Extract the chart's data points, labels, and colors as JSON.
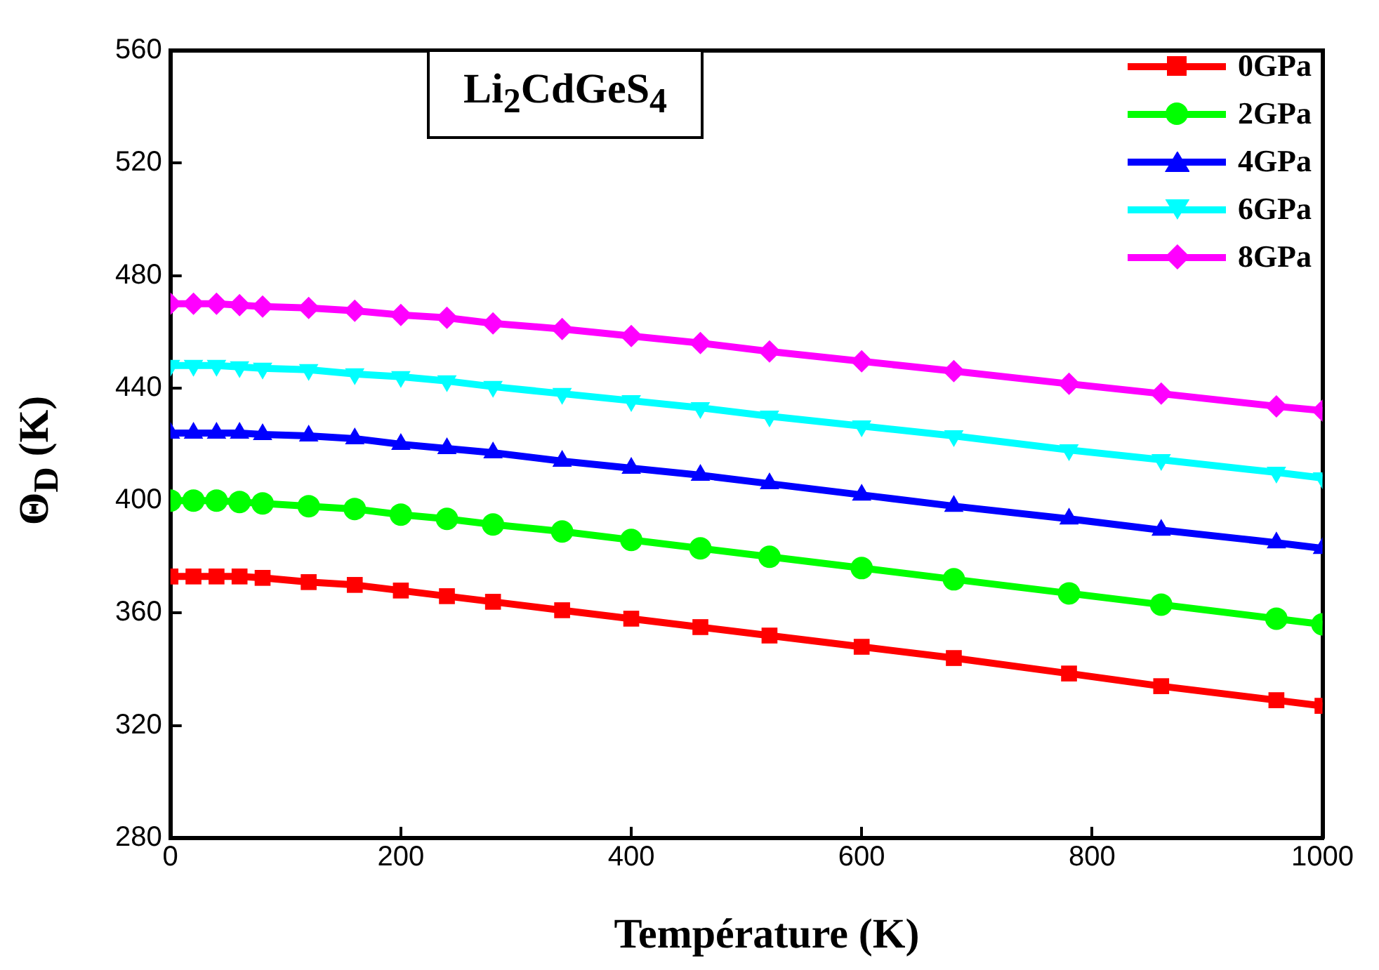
{
  "chart_data": {
    "type": "line",
    "xlabel": "Température (K)",
    "ylabel": "Θ$_{D}$ (K)",
    "annotations": [
      "Li$_{2}$CdGeS$_{4}$"
    ],
    "x": [
      0,
      20,
      40,
      60,
      80,
      120,
      160,
      200,
      240,
      280,
      340,
      400,
      460,
      520,
      600,
      680,
      780,
      860,
      960,
      1000
    ],
    "xlim": [
      0,
      1000
    ],
    "xticks": [
      0,
      200,
      400,
      600,
      800,
      1000
    ],
    "ylim": [
      280,
      560
    ],
    "yticks": [
      280,
      320,
      360,
      400,
      440,
      480,
      520,
      560
    ],
    "grid": false,
    "legend": "top right",
    "line_style": "solid",
    "series": [
      {
        "name": "0GPa",
        "color": "#ff0000",
        "marker": "square",
        "values": [
          373,
          373,
          373,
          373,
          372.5,
          371,
          370,
          368,
          366,
          364,
          361,
          358,
          355,
          352,
          348,
          344,
          338.5,
          334,
          329,
          327
        ]
      },
      {
        "name": "2GPa",
        "color": "#00ff00",
        "marker": "circle",
        "values": [
          400,
          400,
          400,
          399.5,
          399,
          398,
          397,
          395,
          393.5,
          391.5,
          389,
          386,
          383,
          380,
          376,
          372,
          367,
          363,
          358,
          356
        ]
      },
      {
        "name": "4GPa",
        "color": "#0000ff",
        "marker": "triangle",
        "values": [
          424,
          424,
          424,
          424,
          423.5,
          423,
          422,
          420,
          418.5,
          417,
          414,
          411.5,
          409,
          406,
          402,
          398,
          393.5,
          389.5,
          385,
          383
        ]
      },
      {
        "name": "6GPa",
        "color": "#00ffff",
        "marker": "triangle-down",
        "values": [
          448,
          448,
          448,
          447.5,
          447,
          446.5,
          445,
          444,
          442.5,
          440.5,
          438,
          435.5,
          433,
          430,
          426.5,
          423,
          418,
          414.5,
          410,
          408
        ]
      },
      {
        "name": "8GPa",
        "color": "#ff00ff",
        "marker": "diamond",
        "values": [
          470,
          470,
          470,
          469.5,
          469,
          468.5,
          467.5,
          466,
          465,
          463,
          461,
          458.5,
          456,
          453,
          449.5,
          446,
          441.5,
          438,
          433.5,
          432
        ]
      }
    ]
  }
}
